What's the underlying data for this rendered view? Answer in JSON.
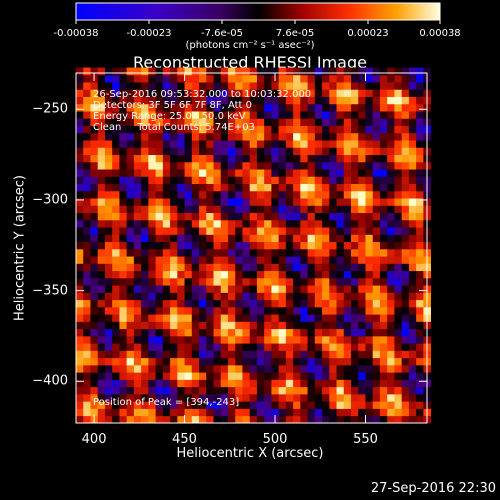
{
  "colorbar": {
    "ticks": [
      "-0.00038",
      "-0.00023",
      "-7.6e-05",
      "7.6e-05",
      "0.00023",
      "0.00038"
    ],
    "units": "(photons cm⁻² s⁻¹ asec⁻²)"
  },
  "plot": {
    "title": "Reconstructed RHESSI Image",
    "info_lines": [
      "26-Sep-2016 09:53:32.000 to 10:03:32.000",
      "Detectors: 3F 5F 6F 7F 8F, Att 0",
      "Energy Range: 25.0 - 50.0 keV",
      "Clean     Total Counts: 5.74E+03"
    ],
    "peak_text": "Position of Peak = [394,-243]"
  },
  "footer": {
    "timestamp": "27-Sep-2016 22:30"
  },
  "chart_data": {
    "type": "heatmap",
    "title": "Reconstructed RHESSI Image",
    "xlabel": "Heliocentric X (arcsec)",
    "ylabel": "Heliocentric Y (arcsec)",
    "xlim": [
      390,
      584
    ],
    "ylim": [
      -423,
      -230
    ],
    "x_ticks": [
      400,
      450,
      500,
      550
    ],
    "y_ticks": [
      -250,
      -300,
      -350,
      -400
    ],
    "grid": false,
    "colorbar_range": [
      -0.00038,
      0.00038
    ],
    "colormap": [
      "#0000ff",
      "#4b0082",
      "#000000",
      "#8b0000",
      "#ff2a00",
      "#ff9900",
      "#ffffcc"
    ],
    "pixel_size_arcsec": 4,
    "pattern_description_note": null
  }
}
